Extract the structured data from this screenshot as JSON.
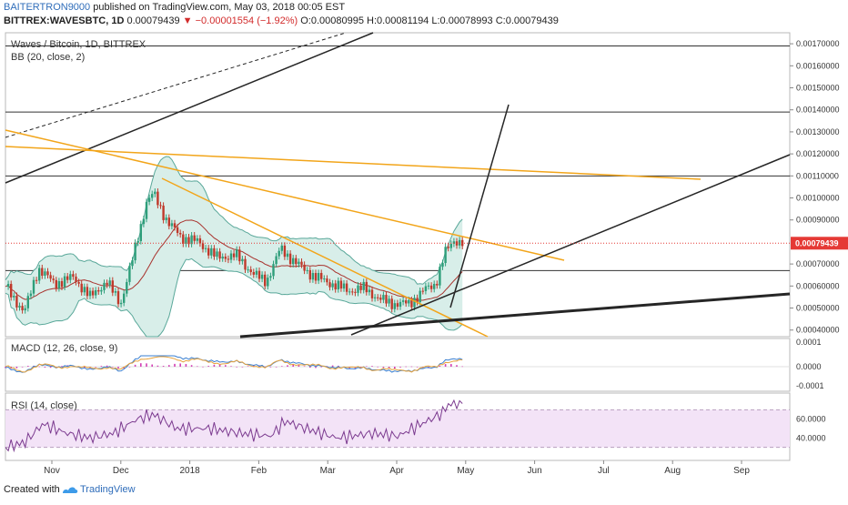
{
  "header": {
    "author": "BAITERTRON9000",
    "published": "published on TradingView.com, May 03, 2018 00:05 EST",
    "symbol": "BITTREX:WAVESBTC, 1D",
    "last": "0.00079439",
    "change": "▼ −0.00001554 (−1.92%)",
    "ohlc": "O:0.00080995 H:0.00081194 L:0.00078993 C:0.00079439"
  },
  "panes": {
    "main_title": "Waves / Bitcoin, 1D, BITTREX",
    "bb_label": "BB (20, close, 2)",
    "macd_label": "MACD (12, 26, close, 9)",
    "rsi_label": "RSI (14, close)"
  },
  "footer": {
    "created": "Created with",
    "brand": "TradingView"
  },
  "colors": {
    "candle_up": "#2e9e7a",
    "candle_down": "#c0392b",
    "bb_fill": "#d8eee9",
    "bb_line": "#5aa89a",
    "bb_mid": "#a8322d",
    "trend_orange": "#f2a51a",
    "trend_black": "#262626",
    "price_tag": "#e53935",
    "rsi_line": "#7b3a8f",
    "rsi_fill": "#f3e3f7",
    "macd_line": "#3a7fd0",
    "macd_signal": "#e6a23c",
    "macd_hist": "#d23fb4"
  },
  "chart_data": {
    "type": "candlestick",
    "title": "Waves / Bitcoin, 1D, BITTREX",
    "x_ticks": [
      "Nov",
      "Dec",
      "2018",
      "Feb",
      "Mar",
      "Apr",
      "May",
      "Jun",
      "Jul",
      "Aug",
      "Sep"
    ],
    "y_ticks": [
      "0.00170000",
      "0.00160000",
      "0.00150000",
      "0.00140000",
      "0.00130000",
      "0.00120000",
      "0.00110000",
      "0.00100000",
      "0.00090000",
      "0.00070000",
      "0.00060000",
      "0.00050000",
      "0.00040000"
    ],
    "ylim": [
      0.00037,
      0.00175
    ],
    "last_price_label": "0.00079439",
    "close_path": [
      {
        "x": "2017-10-20",
        "y": 0.0006
      },
      {
        "x": "2017-10-28",
        "y": 0.00048
      },
      {
        "x": "2017-11-03",
        "y": 0.00068
      },
      {
        "x": "2017-11-10",
        "y": 0.00061
      },
      {
        "x": "2017-11-18",
        "y": 0.00064
      },
      {
        "x": "2017-11-25",
        "y": 0.00055
      },
      {
        "x": "2017-12-02",
        "y": 0.00062
      },
      {
        "x": "2017-12-08",
        "y": 0.00052
      },
      {
        "x": "2017-12-13",
        "y": 0.00072
      },
      {
        "x": "2017-12-19",
        "y": 0.00098
      },
      {
        "x": "2017-12-22",
        "y": 0.00102
      },
      {
        "x": "2017-12-28",
        "y": 0.00089
      },
      {
        "x": "2018-01-03",
        "y": 0.00082
      },
      {
        "x": "2018-01-10",
        "y": 0.0008
      },
      {
        "x": "2018-01-18",
        "y": 0.00073
      },
      {
        "x": "2018-01-26",
        "y": 0.00074
      },
      {
        "x": "2018-02-03",
        "y": 0.00065
      },
      {
        "x": "2018-02-08",
        "y": 0.00062
      },
      {
        "x": "2018-02-14",
        "y": 0.00077
      },
      {
        "x": "2018-02-21",
        "y": 0.0007
      },
      {
        "x": "2018-03-01",
        "y": 0.00064
      },
      {
        "x": "2018-03-08",
        "y": 0.00061
      },
      {
        "x": "2018-03-15",
        "y": 0.00058
      },
      {
        "x": "2018-03-22",
        "y": 0.00059
      },
      {
        "x": "2018-03-28",
        "y": 0.00054
      },
      {
        "x": "2018-04-03",
        "y": 0.00052
      },
      {
        "x": "2018-04-10",
        "y": 0.00052
      },
      {
        "x": "2018-04-16",
        "y": 0.00058
      },
      {
        "x": "2018-04-21",
        "y": 0.00061
      },
      {
        "x": "2018-04-25",
        "y": 0.00075
      },
      {
        "x": "2018-04-29",
        "y": 0.00081
      },
      {
        "x": "2018-05-03",
        "y": 0.00079439
      }
    ],
    "horizontal_levels": [
      0.00169,
      0.00139,
      0.0011,
      0.00067
    ],
    "macd_ticks": [
      "0.0001",
      "0.0000",
      "-0.0001"
    ],
    "rsi_ticks": [
      "60.0000",
      "40.0000"
    ],
    "rsi_path": [
      {
        "x": "2017-10-20",
        "y": 30
      },
      {
        "x": "2017-10-28",
        "y": 35
      },
      {
        "x": "2017-11-05",
        "y": 55
      },
      {
        "x": "2017-11-15",
        "y": 45
      },
      {
        "x": "2017-11-25",
        "y": 40
      },
      {
        "x": "2017-12-05",
        "y": 45
      },
      {
        "x": "2017-12-15",
        "y": 60
      },
      {
        "x": "2017-12-22",
        "y": 65
      },
      {
        "x": "2018-01-01",
        "y": 50
      },
      {
        "x": "2018-01-15",
        "y": 50
      },
      {
        "x": "2018-01-28",
        "y": 45
      },
      {
        "x": "2018-02-10",
        "y": 42
      },
      {
        "x": "2018-02-16",
        "y": 58
      },
      {
        "x": "2018-02-25",
        "y": 50
      },
      {
        "x": "2018-03-10",
        "y": 40
      },
      {
        "x": "2018-03-25",
        "y": 45
      },
      {
        "x": "2018-04-05",
        "y": 42
      },
      {
        "x": "2018-04-15",
        "y": 55
      },
      {
        "x": "2018-04-23",
        "y": 65
      },
      {
        "x": "2018-04-28",
        "y": 79
      },
      {
        "x": "2018-05-03",
        "y": 75
      }
    ]
  }
}
